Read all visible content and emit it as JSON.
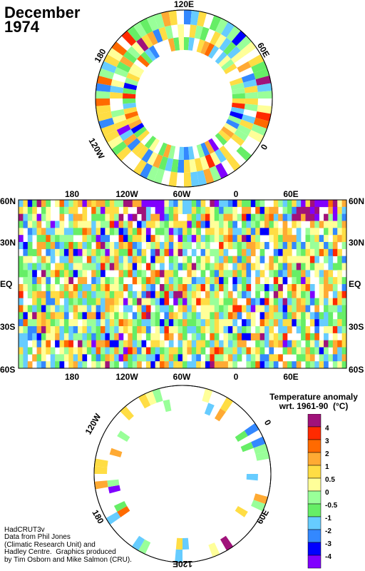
{
  "title": "December\n1974",
  "north_polar": {
    "lon_labels": [
      "120E",
      "60E",
      "0",
      "120W",
      "180"
    ]
  },
  "map": {
    "lat_labels": [
      "60N",
      "30N",
      "EQ",
      "30S",
      "60S"
    ],
    "lon_labels": [
      "180",
      "120W",
      "60W",
      "0",
      "60E"
    ]
  },
  "south_polar": {
    "lon_labels": [
      "120W",
      "0",
      "180",
      "60E",
      "120E"
    ]
  },
  "legend": {
    "title": "Temperature anomaly\nwrt. 1961-90  (°C)",
    "levels": [
      "4",
      "3",
      "2",
      "1",
      "0.5",
      "0",
      "-0.5",
      "-1",
      "-2",
      "-3",
      "-4"
    ],
    "colors": [
      "#a0127a",
      "#ff2a00",
      "#ff6a00",
      "#ffaa33",
      "#ffdd44",
      "#ffff99",
      "#99ff99",
      "#66ee66",
      "#66ccff",
      "#3388ff",
      "#0000ff",
      "#8000ff"
    ]
  },
  "credits": "HadCRUT3v\nData from Phil Jones\n(Climatic Research Unit) and\nHadley Centre.  Graphics produced\nby Tim Osborn and Mike Salmon (CRU)."
}
